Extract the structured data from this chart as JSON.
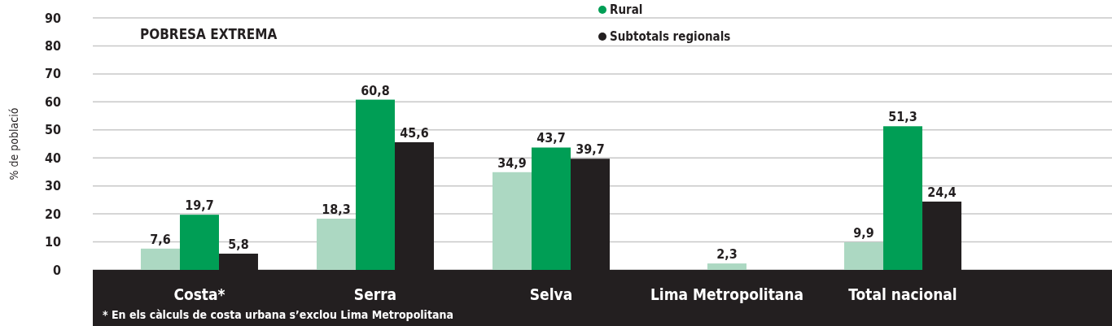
{
  "chart_data": {
    "type": "bar",
    "title": "POBRESA EXTREMA",
    "ylabel": "% de població",
    "categories": [
      "Costa*",
      "Serra",
      "Selva",
      "Lima Metropolitana",
      "Total nacional"
    ],
    "series": [
      {
        "color": "#acd8c2",
        "values": [
          7.6,
          18.3,
          34.9,
          2.3,
          9.9
        ],
        "value_labels": [
          "7,6",
          "18,3",
          "34,9",
          "2,3",
          "9,9"
        ]
      },
      {
        "name": "Rural",
        "color": "#009e55",
        "values": [
          19.7,
          60.8,
          43.7,
          null,
          51.3
        ],
        "value_labels": [
          "19,7",
          "60,8",
          "43,7",
          null,
          "51,3"
        ]
      },
      {
        "name": "Subtotals regionals",
        "color": "#231f20",
        "values": [
          5.8,
          45.6,
          39.7,
          null,
          24.4
        ],
        "value_labels": [
          "5,8",
          "45,6",
          "39,7",
          null,
          "24,4"
        ]
      }
    ],
    "ylim": [
      0,
      90
    ],
    "yticks": [
      0,
      10,
      20,
      30,
      40,
      50,
      60,
      70,
      80,
      90
    ],
    "grid": "y",
    "legend": "top",
    "annotations": [
      "* En els càlculs de costa urbana s’exclou Lima Metropolitana"
    ]
  }
}
